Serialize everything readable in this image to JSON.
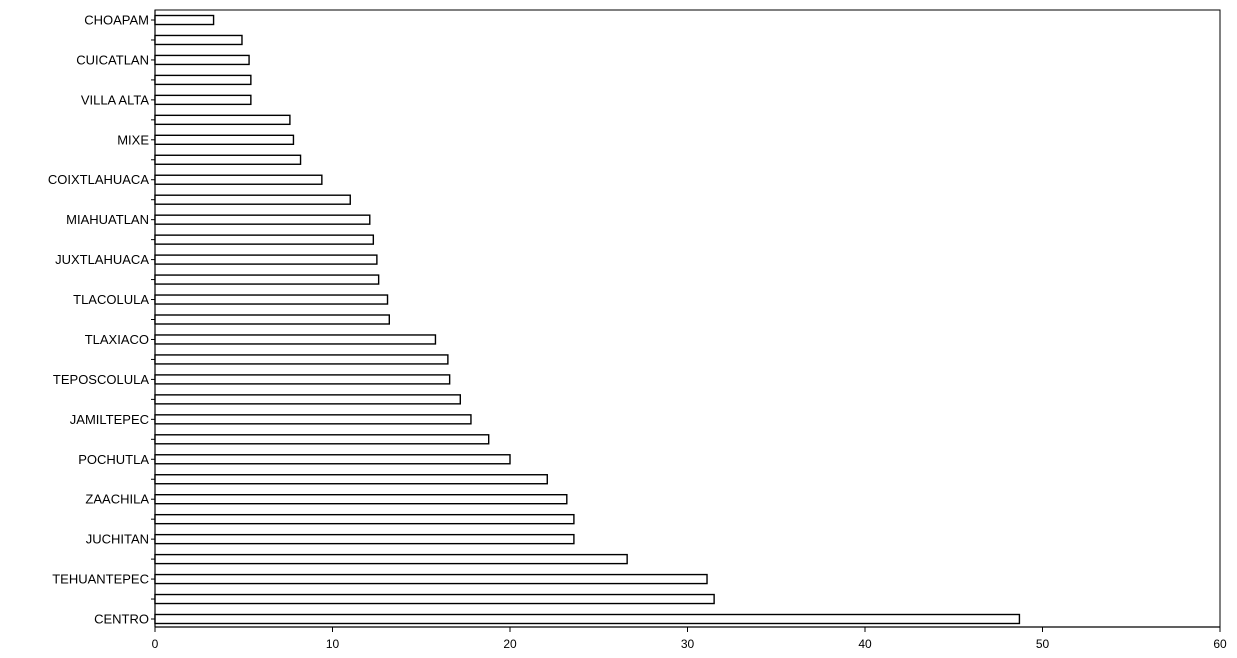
{
  "chart_data": {
    "type": "bar",
    "orientation": "horizontal",
    "title": "",
    "xlabel": "",
    "ylabel": "",
    "xlim": [
      0,
      60
    ],
    "x_ticks": [
      "0",
      "10",
      "20",
      "30",
      "40",
      "50",
      "60"
    ],
    "grid": false,
    "categories": [
      "CHOAPAM",
      "",
      "CUICATLAN",
      "",
      "VILLA ALTA",
      "",
      "MIXE",
      "",
      "COIXTLAHUACA",
      "",
      "MIAHUATLAN",
      "",
      "JUXTLAHUACA",
      "",
      "TLACOLULA",
      "",
      "TLAXIACO",
      "",
      "TEPOSCOLULA",
      "",
      "JAMILTEPEC",
      "",
      "POCHUTLA",
      "",
      "ZAACHILA",
      "",
      "JUCHITAN",
      "",
      "TEHUANTEPEC",
      "",
      "CENTRO"
    ],
    "values": [
      3.3,
      4.9,
      5.3,
      5.4,
      5.4,
      7.6,
      7.8,
      8.2,
      9.4,
      11.0,
      12.1,
      12.3,
      12.5,
      12.6,
      13.1,
      13.2,
      15.8,
      16.5,
      16.6,
      17.2,
      17.8,
      18.8,
      20.0,
      22.1,
      23.2,
      23.6,
      23.6,
      26.6,
      31.1,
      31.5,
      48.7
    ],
    "bar_fill": "#ffffff",
    "bar_stroke": "#000000"
  }
}
